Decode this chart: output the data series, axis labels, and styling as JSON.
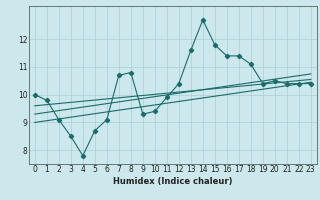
{
  "title": "",
  "xlabel": "Humidex (Indice chaleur)",
  "bg_color": "#cce8ec",
  "line_color": "#1a6b6b",
  "grid_color": "#aacfd4",
  "x_ticks": [
    0,
    1,
    2,
    3,
    4,
    5,
    6,
    7,
    8,
    9,
    10,
    11,
    12,
    13,
    14,
    15,
    16,
    17,
    18,
    19,
    20,
    21,
    22,
    23
  ],
  "y_ticks": [
    8,
    9,
    10,
    11,
    12
  ],
  "ylim": [
    7.5,
    13.2
  ],
  "xlim": [
    -0.5,
    23.5
  ],
  "main_line_x": [
    0,
    1,
    2,
    3,
    4,
    5,
    6,
    7,
    8,
    9,
    10,
    11,
    12,
    13,
    14,
    15,
    16,
    17,
    18,
    19,
    20,
    21,
    22,
    23
  ],
  "main_line_y": [
    10.0,
    9.8,
    9.1,
    8.5,
    7.8,
    8.7,
    9.1,
    10.7,
    10.8,
    9.3,
    9.4,
    9.9,
    10.4,
    11.6,
    12.7,
    11.8,
    11.4,
    11.4,
    11.1,
    10.4,
    10.5,
    10.4,
    10.4,
    10.4
  ],
  "trend1_x": [
    0,
    23
  ],
  "trend1_y": [
    9.6,
    10.55
  ],
  "trend2_x": [
    0,
    23
  ],
  "trend2_y": [
    9.3,
    10.75
  ],
  "trend3_x": [
    0,
    23
  ],
  "trend3_y": [
    9.0,
    10.45
  ]
}
